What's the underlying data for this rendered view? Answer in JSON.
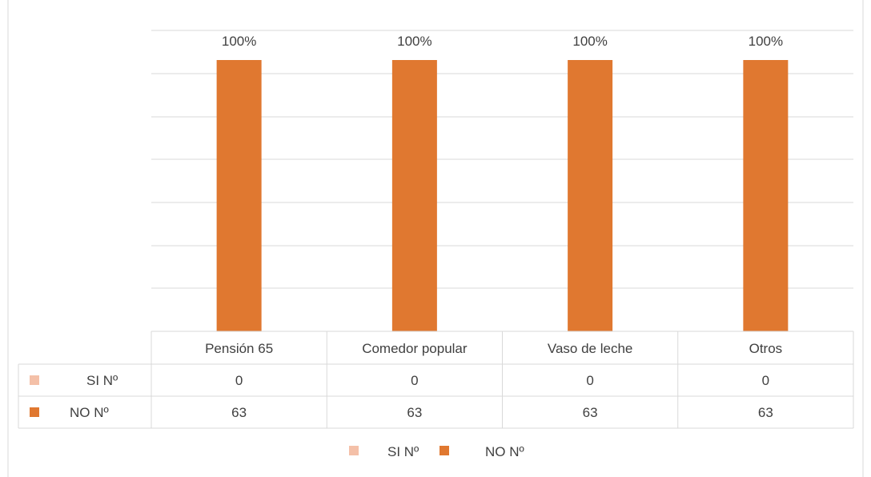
{
  "chart_data": {
    "type": "bar",
    "categories": [
      "Pensión 65",
      "Comedor popular",
      "Vaso de leche",
      "Otros"
    ],
    "series": [
      {
        "name": "SI Nº",
        "values": [
          0,
          0,
          0,
          0
        ],
        "color": "#F4C0A8"
      },
      {
        "name": "NO  Nº",
        "values": [
          63,
          63,
          63,
          63
        ],
        "color": "#E07830"
      }
    ],
    "data_labels": [
      "100%",
      "100%",
      "100%",
      "100%"
    ],
    "ylim": [
      0,
      63
    ],
    "grid": true,
    "data_table": true,
    "legend_position": "bottom"
  },
  "colors": {
    "gridline": "#D9D9D9",
    "border": "#D9D9D9",
    "text": "#404040"
  }
}
